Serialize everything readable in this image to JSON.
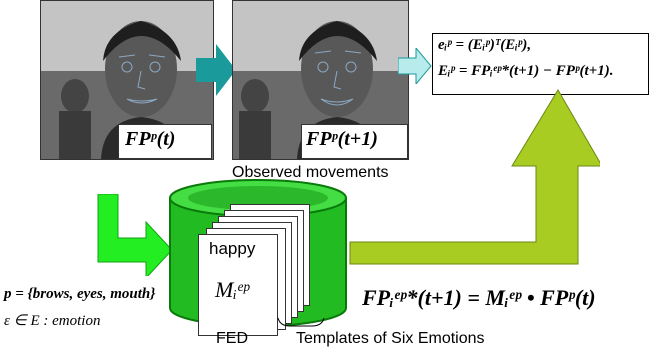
{
  "frames": {
    "t_label": "FPᵖ(t)",
    "t1_label": "FPᵖ(t+1)"
  },
  "observed_caption": "Observed movements",
  "formula": {
    "line1": "eᵢᵖ = (Eᵢᵖ)ᵀ(Eᵢᵖ),",
    "line2": "Eᵢᵖ = FPᵢᵉᵖ*(t+1) − FPᵖ(t+1)."
  },
  "db": {
    "label": "FED",
    "card_title": "happy",
    "card_symbol": "Mᵢᵉᵖ",
    "templates_caption": "Templates of Six Emotions"
  },
  "definitions": {
    "p_def": "p = {brows, eyes, mouth}",
    "e_def": "ε ∈ E : emotion"
  },
  "bottom_formula": "FPᵢᵉᵖ*(t+1)  = Mᵢᵉᵖ • FPᵖ(t)",
  "colors": {
    "teal_arrow": "#1a9a9a",
    "light_teal_arrow": "#b8ecec",
    "green_arrow": "#22ee22",
    "olive_arrow": "#a8cc22",
    "db_green": "#22bb22",
    "db_dark": "#0a7a0a"
  }
}
